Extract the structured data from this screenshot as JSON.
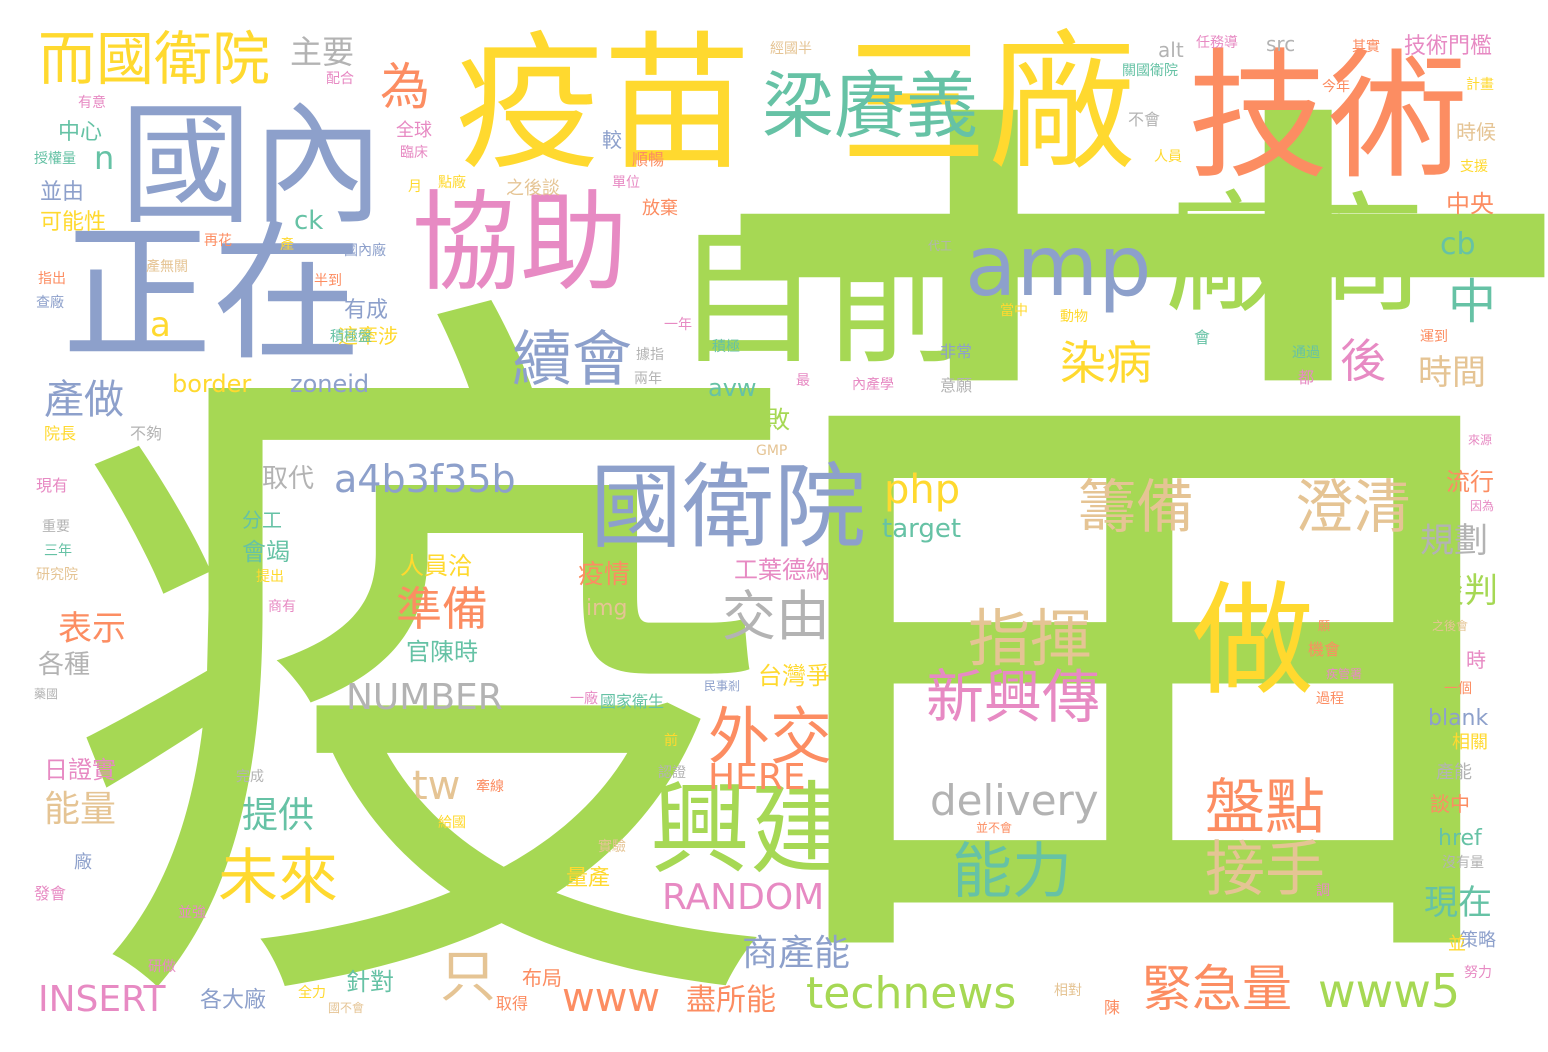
{
  "colors": {
    "green": "#a6d854",
    "orange": "#fc8d62",
    "blue": "#8da0cb",
    "pink": "#e78ac3",
    "yellow": "#ffd92f",
    "tan": "#e5c494",
    "gray": "#b3b3b3",
    "teal": "#66c2a5"
  },
  "words": {
    "w001": "疫",
    "w002": "苗",
    "w003": "疫苗",
    "w004": "三廠",
    "w005": "技術",
    "w006": "國內",
    "w007": "正在",
    "w008": "協助",
    "w009": "目前",
    "w010": "廠商",
    "w011": "amp",
    "w012": "梁賡義",
    "w013": "而國衛院",
    "w014": "國衛院",
    "w015": "做",
    "w016": "興建",
    "w017": "續會",
    "w018": "外交",
    "w019": "未來",
    "w020": "指揮",
    "w021": "新興傳",
    "w022": "能力",
    "w023": "盤點",
    "w024": "接手",
    "w025": "籌備",
    "w026": "澄清",
    "w027": "準備",
    "w028": "交由",
    "w029": "a4b3f35b",
    "w030": "technews",
    "w031": "緊急量",
    "w032": "www5",
    "w033": "www",
    "w034": "盡所能",
    "w035": "INSERT",
    "w036": "NUMBER",
    "w037": "RANDOM",
    "w038": "delivery",
    "w039": "HERE",
    "w040": "只",
    "w041": "tw",
    "w042": "php",
    "w043": "染病",
    "w044": "後",
    "w045": "中",
    "w046": "為",
    "w047": "主要",
    "w048": "產做",
    "w049": "提供",
    "w050": "表示",
    "w051": "能量",
    "w052": "商產能",
    "w053": "時間",
    "w054": "規劃",
    "w055": "談判",
    "w056": "現在",
    "w057": "border",
    "w058": "zoneid",
    "w059": "target",
    "w060": "取代",
    "w061": "有敗",
    "w062": "有成",
    "w063": "這牽涉",
    "w064": "avw",
    "w065": "cb",
    "w066": "中央",
    "w067": "流行",
    "w068": "疫情",
    "w069": "img",
    "w070": "官陳時",
    "w071": "人員洽",
    "w072": "工葉德納",
    "w073": "台灣爭",
    "w074": "日證實",
    "w075": "各種",
    "w076": "會竭",
    "w077": "分工",
    "w078": "針對",
    "w079": "布局",
    "w080": "各大廠",
    "w081": "量產",
    "w082": "技術門檻",
    "w083": "alt",
    "w084": "src",
    "w085": "href",
    "w086": "blank",
    "w087": "策略",
    "w088": "相關",
    "w089": "產能",
    "w090": "談中",
    "w091": "時",
    "w092": "一個",
    "w093": "時候",
    "w094": "支援",
    "w095": "計畫",
    "w096": "中心",
    "w097": "並由",
    "w098": "可能性",
    "w099": "較",
    "w100": "順暢",
    "w101": "放棄",
    "w102": "不會",
    "w103": "全球",
    "w104": "臨床",
    "w105": "之後談",
    "w106": "點廠",
    "w107": "單位",
    "w108": "經國半",
    "w109": "關國衛院",
    "w110": "其實",
    "w111": "今年",
    "w112": "任務導",
    "w113": "配合",
    "w114": "有意",
    "w115": "授權量",
    "w116": "月",
    "w117": "人員",
    "w118": "ck",
    "w119": "a",
    "w120": "n",
    "w121": "再花",
    "w122": "產",
    "w123": "國內廠",
    "w124": "代工",
    "w125": "半到",
    "w126": "產無關",
    "w127": "指出",
    "w128": "查廠",
    "w129": "一年",
    "w130": "積極盤",
    "w131": "積極",
    "w132": "動物",
    "w133": "當中",
    "w134": "會",
    "w135": "通過",
    "w136": "運到",
    "w137": "都",
    "w138": "非常",
    "w139": "意願",
    "w140": "最",
    "w141": "內產學",
    "w142": "兩年",
    "w143": "據指",
    "w144": "院長",
    "w145": "不夠",
    "w146": "現有",
    "w147": "重要",
    "w148": "三年",
    "w149": "研究院",
    "w150": "提出",
    "w151": "商有",
    "w152": "GMP",
    "w153": "來源",
    "w154": "因為",
    "w155": "之後會",
    "w156": "機會",
    "w157": "疾管署",
    "w158": "民事剎",
    "w159": "一廠",
    "w160": "國家衛生",
    "w161": "過程",
    "w162": "前",
    "w163": "認證",
    "w164": "完成",
    "w165": "牽線",
    "w166": "給國",
    "w167": "並不會",
    "w168": "實驗",
    "w169": "沒有量",
    "w170": "調",
    "w171": "並",
    "w172": "努力",
    "w173": "相對",
    "w174": "陳",
    "w175": "取得",
    "w176": "全力",
    "w177": "國不會",
    "w178": "研做",
    "w179": "並強",
    "w180": "發會",
    "w181": "廠",
    "w182": "藥國",
    "w183": "願"
  }
}
